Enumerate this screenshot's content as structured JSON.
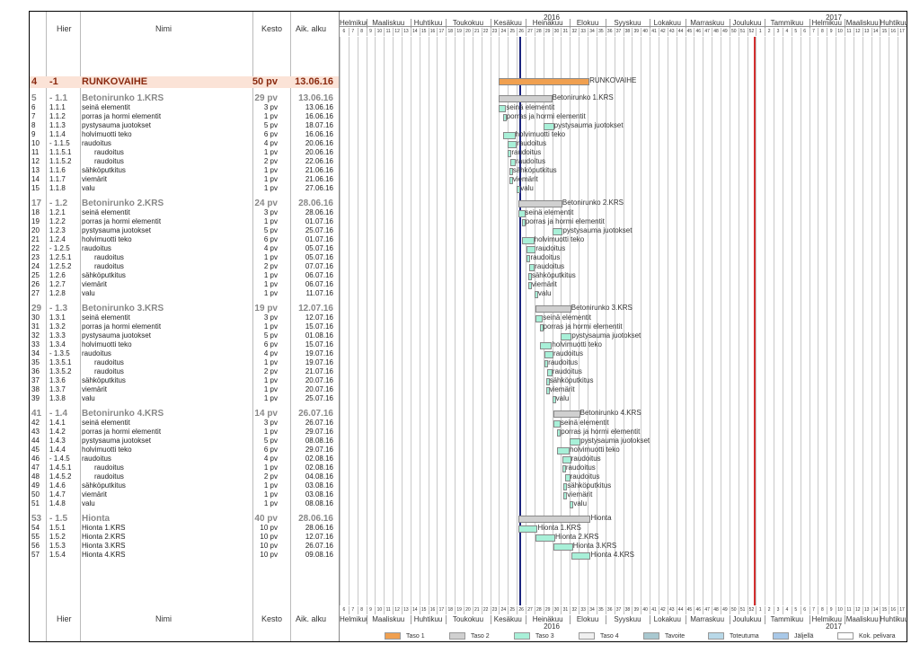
{
  "header": {
    "col_hier": "Hier",
    "col_name": "Nimi",
    "col_duration": "Kesto",
    "col_start": "Aik. alku",
    "year1": "2016",
    "year2": "2017",
    "weeks": [
      "6",
      "7",
      "8",
      "9",
      "10",
      "11",
      "12",
      "13",
      "14",
      "15",
      "16",
      "17",
      "18",
      "19",
      "20",
      "21",
      "22",
      "23",
      "24",
      "25",
      "26",
      "27",
      "28",
      "29",
      "30",
      "31",
      "32",
      "33",
      "34",
      "35",
      "36",
      "37",
      "38",
      "39",
      "40",
      "41",
      "42",
      "43",
      "44",
      "45",
      "46",
      "47",
      "48",
      "49",
      "50",
      "51",
      "52",
      "1",
      "2",
      "3",
      "4",
      "5",
      "6",
      "7",
      "8",
      "9",
      "10",
      "11",
      "12",
      "13",
      "14",
      "15",
      "16",
      "17"
    ],
    "months": [
      "Helmikuu",
      "Maaliskuu",
      "Huhtikuu",
      "Toukokuu",
      "Kesäkuu",
      "Heinäkuu",
      "Elokuu",
      "Syyskuu",
      "Lokakuu",
      "Marraskuu",
      "Joulukuu",
      "Tammikuu",
      "Helmikuu",
      "Maaliskuu",
      "Huhtikuu"
    ]
  },
  "tasks": [
    {
      "no": "4",
      "wbs": "-1",
      "name": "RUNKOVAIHE",
      "dur": "50 pv",
      "start": "13.06.16",
      "level": 1,
      "bar": "RUNKOVAIHE"
    },
    {
      "no": "5",
      "wbs": "- 1.1",
      "name": "Betonirunko 1.KRS",
      "dur": "29 pv",
      "start": "13.06.16",
      "level": 2,
      "bar": "Betonirunko 1.KRS"
    },
    {
      "no": "6",
      "wbs": "1.1.1",
      "name": "seinä elementit",
      "dur": "3 pv",
      "start": "13.06.16",
      "level": 3,
      "bar": "seinä elementit"
    },
    {
      "no": "7",
      "wbs": "1.1.2",
      "name": "porras ja hormi  elementit",
      "dur": "1 pv",
      "start": "16.06.16",
      "level": 3,
      "bar": "porras ja hormi  elementit"
    },
    {
      "no": "8",
      "wbs": "1.1.3",
      "name": "pystysauma juotokset",
      "dur": "5 pv",
      "start": "18.07.16",
      "level": 3,
      "bar": "pystysauma juotokset"
    },
    {
      "no": "9",
      "wbs": "1.1.4",
      "name": "holvimuotti teko",
      "dur": "6 pv",
      "start": "16.06.16",
      "level": 3,
      "bar": "holvimuotti teko"
    },
    {
      "no": "10",
      "wbs": "- 1.1.5",
      "name": "raudoitus",
      "dur": "4 pv",
      "start": "20.06.16",
      "level": 3,
      "bar": "raudoitus"
    },
    {
      "no": "11",
      "wbs": "1.1.5.1",
      "name": "raudoitus",
      "dur": "1 pv",
      "start": "20.06.16",
      "level": 4,
      "bar": "raudoitus"
    },
    {
      "no": "12",
      "wbs": "1.1.5.2",
      "name": "raudoitus",
      "dur": "2 pv",
      "start": "22.06.16",
      "level": 4,
      "bar": "raudoitus"
    },
    {
      "no": "13",
      "wbs": "1.1.6",
      "name": "sähköputkitus",
      "dur": "1 pv",
      "start": "21.06.16",
      "level": 3,
      "bar": "sähköputkitus"
    },
    {
      "no": "14",
      "wbs": "1.1.7",
      "name": "viemärit",
      "dur": "1 pv",
      "start": "21.06.16",
      "level": 3,
      "bar": "viemärit"
    },
    {
      "no": "15",
      "wbs": "1.1.8",
      "name": "valu",
      "dur": "1 pv",
      "start": "27.06.16",
      "level": 3,
      "bar": "valu"
    },
    {
      "no": "17",
      "wbs": "- 1.2",
      "name": "Betonirunko 2.KRS",
      "dur": "24 pv",
      "start": "28.06.16",
      "level": 2,
      "bar": "Betonirunko 2.KRS"
    },
    {
      "no": "18",
      "wbs": "1.2.1",
      "name": "seinä elementit",
      "dur": "3 pv",
      "start": "28.06.16",
      "level": 3,
      "bar": "seinä elementit"
    },
    {
      "no": "19",
      "wbs": "1.2.2",
      "name": "porras ja hormi  elementit",
      "dur": "1 pv",
      "start": "01.07.16",
      "level": 3,
      "bar": "porras ja hormi  elementit"
    },
    {
      "no": "20",
      "wbs": "1.2.3",
      "name": "pystysauma juotokset",
      "dur": "5 pv",
      "start": "25.07.16",
      "level": 3,
      "bar": "pystysauma juotokset"
    },
    {
      "no": "21",
      "wbs": "1.2.4",
      "name": "holvimuotti teko",
      "dur": "6 pv",
      "start": "01.07.16",
      "level": 3,
      "bar": "holvimuotti teko"
    },
    {
      "no": "22",
      "wbs": "- 1.2.5",
      "name": "raudoitus",
      "dur": "4 pv",
      "start": "05.07.16",
      "level": 3,
      "bar": "raudoitus"
    },
    {
      "no": "23",
      "wbs": "1.2.5.1",
      "name": "raudoitus",
      "dur": "1 pv",
      "start": "05.07.16",
      "level": 4,
      "bar": "raudoitus"
    },
    {
      "no": "24",
      "wbs": "1.2.5.2",
      "name": "raudoitus",
      "dur": "2 pv",
      "start": "07.07.16",
      "level": 4,
      "bar": "raudoitus"
    },
    {
      "no": "25",
      "wbs": "1.2.6",
      "name": "sähköputkitus",
      "dur": "1 pv",
      "start": "06.07.16",
      "level": 3,
      "bar": "sähköputkitus"
    },
    {
      "no": "26",
      "wbs": "1.2.7",
      "name": "viemärit",
      "dur": "1 pv",
      "start": "06.07.16",
      "level": 3,
      "bar": "viemärit"
    },
    {
      "no": "27",
      "wbs": "1.2.8",
      "name": "valu",
      "dur": "1 pv",
      "start": "11.07.16",
      "level": 3,
      "bar": "valu"
    },
    {
      "no": "29",
      "wbs": "- 1.3",
      "name": "Betonirunko 3.KRS",
      "dur": "19 pv",
      "start": "12.07.16",
      "level": 2,
      "bar": "Betonirunko 3.KRS"
    },
    {
      "no": "30",
      "wbs": "1.3.1",
      "name": "seinä elementit",
      "dur": "3 pv",
      "start": "12.07.16",
      "level": 3,
      "bar": "seinä elementit"
    },
    {
      "no": "31",
      "wbs": "1.3.2",
      "name": "porras ja hormi  elementit",
      "dur": "1 pv",
      "start": "15.07.16",
      "level": 3,
      "bar": "porras ja hormi  elementit"
    },
    {
      "no": "32",
      "wbs": "1.3.3",
      "name": "pystysauma juotokset",
      "dur": "5 pv",
      "start": "01.08.16",
      "level": 3,
      "bar": "pystysauma juotokset"
    },
    {
      "no": "33",
      "wbs": "1.3.4",
      "name": "holvimuotti teko",
      "dur": "6 pv",
      "start": "15.07.16",
      "level": 3,
      "bar": "holvimuotti teko"
    },
    {
      "no": "34",
      "wbs": "- 1.3.5",
      "name": "raudoitus",
      "dur": "4 pv",
      "start": "19.07.16",
      "level": 3,
      "bar": "raudoitus"
    },
    {
      "no": "35",
      "wbs": "1.3.5.1",
      "name": "raudoitus",
      "dur": "1 pv",
      "start": "19.07.16",
      "level": 4,
      "bar": "raudoitus"
    },
    {
      "no": "36",
      "wbs": "1.3.5.2",
      "name": "raudoitus",
      "dur": "2 pv",
      "start": "21.07.16",
      "level": 4,
      "bar": "raudoitus"
    },
    {
      "no": "37",
      "wbs": "1.3.6",
      "name": "sähköputkitus",
      "dur": "1 pv",
      "start": "20.07.16",
      "level": 3,
      "bar": "sähköputkitus"
    },
    {
      "no": "38",
      "wbs": "1.3.7",
      "name": "viemärit",
      "dur": "1 pv",
      "start": "20.07.16",
      "level": 3,
      "bar": "viemärit"
    },
    {
      "no": "39",
      "wbs": "1.3.8",
      "name": "valu",
      "dur": "1 pv",
      "start": "25.07.16",
      "level": 3,
      "bar": "valu"
    },
    {
      "no": "41",
      "wbs": "- 1.4",
      "name": "Betonirunko 4.KRS",
      "dur": "14 pv",
      "start": "26.07.16",
      "level": 2,
      "bar": "Betonirunko 4.KRS"
    },
    {
      "no": "42",
      "wbs": "1.4.1",
      "name": "seinä elementit",
      "dur": "3 pv",
      "start": "26.07.16",
      "level": 3,
      "bar": "seinä elementit"
    },
    {
      "no": "43",
      "wbs": "1.4.2",
      "name": "porras ja hormi  elementit",
      "dur": "1 pv",
      "start": "29.07.16",
      "level": 3,
      "bar": "porras ja hormi  elementit"
    },
    {
      "no": "44",
      "wbs": "1.4.3",
      "name": "pystysauma juotokset",
      "dur": "5 pv",
      "start": "08.08.16",
      "level": 3,
      "bar": "pystysauma juotokset"
    },
    {
      "no": "45",
      "wbs": "1.4.4",
      "name": "holvimuotti teko",
      "dur": "6 pv",
      "start": "29.07.16",
      "level": 3,
      "bar": "holvimuotti teko"
    },
    {
      "no": "46",
      "wbs": "- 1.4.5",
      "name": "raudoitus",
      "dur": "4 pv",
      "start": "02.08.16",
      "level": 3,
      "bar": "raudoitus"
    },
    {
      "no": "47",
      "wbs": "1.4.5.1",
      "name": "raudoitus",
      "dur": "1 pv",
      "start": "02.08.16",
      "level": 4,
      "bar": "raudoitus"
    },
    {
      "no": "48",
      "wbs": "1.4.5.2",
      "name": "raudoitus",
      "dur": "2 pv",
      "start": "04.08.16",
      "level": 4,
      "bar": "raudoitus"
    },
    {
      "no": "49",
      "wbs": "1.4.6",
      "name": "sähköputkitus",
      "dur": "1 pv",
      "start": "03.08.16",
      "level": 3,
      "bar": "sähköputkitus"
    },
    {
      "no": "50",
      "wbs": "1.4.7",
      "name": "viemärit",
      "dur": "1 pv",
      "start": "03.08.16",
      "level": 3,
      "bar": "viemärit"
    },
    {
      "no": "51",
      "wbs": "1.4.8",
      "name": "valu",
      "dur": "1 pv",
      "start": "08.08.16",
      "level": 3,
      "bar": "valu"
    },
    {
      "no": "53",
      "wbs": "- 1.5",
      "name": "Hionta",
      "dur": "40 pv",
      "start": "28.06.16",
      "level": 2,
      "bar": "Hionta"
    },
    {
      "no": "54",
      "wbs": "1.5.1",
      "name": "Hionta 1.KRS",
      "dur": "10 pv",
      "start": "28.06.16",
      "level": 3,
      "bar": "Hionta 1.KRS"
    },
    {
      "no": "55",
      "wbs": "1.5.2",
      "name": "Hionta 2.KRS",
      "dur": "10 pv",
      "start": "12.07.16",
      "level": 3,
      "bar": "Hionta 2.KRS"
    },
    {
      "no": "56",
      "wbs": "1.5.3",
      "name": "Hionta 3.KRS",
      "dur": "10 pv",
      "start": "26.07.16",
      "level": 3,
      "bar": "Hionta 3.KRS"
    },
    {
      "no": "57",
      "wbs": "1.5.4",
      "name": "Hionta 4.KRS",
      "dur": "10 pv",
      "start": "09.08.16",
      "level": 3,
      "bar": "Hionta 4.KRS"
    }
  ],
  "legend": [
    {
      "label": "Taso 1",
      "color": "#f0a050"
    },
    {
      "label": "Taso 2",
      "color": "#d0d0d0"
    },
    {
      "label": "Taso 3",
      "color": "#a8f0d8"
    },
    {
      "label": "Taso 4",
      "color": "#f0f0f0"
    },
    {
      "label": "Tavoite",
      "color": "#a8c8d0"
    },
    {
      "label": "Toteutuma",
      "color": "#b8d8e8"
    },
    {
      "label": "Jäljellä",
      "color": "#a8c8e8"
    },
    {
      "label": "Kok. pelivara",
      "color": "#ffffff"
    }
  ],
  "colors": {
    "level1": "#f0a050",
    "level2": "#d0d0d0",
    "level3": "#a8f0d8",
    "today": "#1a237e",
    "deadline": "#d32f2f"
  }
}
